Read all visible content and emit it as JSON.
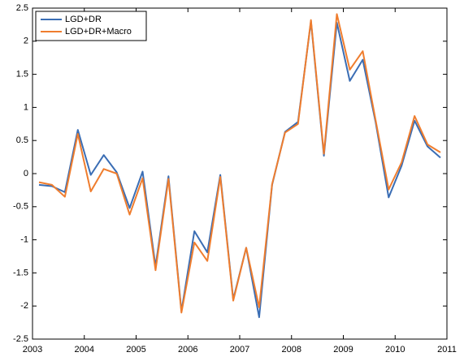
{
  "chart_data": {
    "type": "line",
    "x": [
      2003.125,
      2003.375,
      2003.625,
      2003.875,
      2004.125,
      2004.375,
      2004.625,
      2004.875,
      2005.125,
      2005.375,
      2005.625,
      2005.875,
      2006.125,
      2006.375,
      2006.625,
      2006.875,
      2007.125,
      2007.375,
      2007.625,
      2007.875,
      2008.125,
      2008.375,
      2008.625,
      2008.875,
      2009.125,
      2009.375,
      2009.625,
      2009.875,
      2010.125,
      2010.375,
      2010.625,
      2010.875
    ],
    "series": [
      {
        "name": "LGD+DR",
        "color": "#3a6db4",
        "values": [
          -0.17,
          -0.19,
          -0.28,
          0.66,
          -0.02,
          0.28,
          0.02,
          -0.52,
          0.03,
          -1.4,
          -0.04,
          -2.08,
          -0.87,
          -1.19,
          -0.02,
          -1.9,
          -1.12,
          -2.17,
          -0.17,
          0.63,
          0.78,
          2.3,
          0.27,
          2.28,
          1.4,
          1.72,
          0.77,
          -0.36,
          0.12,
          0.8,
          0.41,
          0.24
        ]
      },
      {
        "name": "LGD+DR+Macro",
        "color": "#ef7d2e",
        "values": [
          -0.13,
          -0.17,
          -0.35,
          0.6,
          -0.27,
          0.07,
          0.0,
          -0.62,
          -0.07,
          -1.46,
          -0.08,
          -2.1,
          -1.04,
          -1.32,
          -0.05,
          -1.92,
          -1.12,
          -2.02,
          -0.16,
          0.62,
          0.75,
          2.32,
          0.3,
          2.41,
          1.57,
          1.85,
          0.8,
          -0.24,
          0.17,
          0.87,
          0.44,
          0.32
        ]
      }
    ],
    "xlim": [
      2003,
      2011
    ],
    "xticks": [
      2003,
      2004,
      2005,
      2006,
      2007,
      2008,
      2009,
      2010,
      2011
    ],
    "ylim": [
      -2.5,
      2.5
    ],
    "yticks": [
      -2.5,
      -2,
      -1.5,
      -1,
      -0.5,
      0,
      0.5,
      1,
      1.5,
      2,
      2.5
    ],
    "grid": false,
    "legend": "upper-left"
  }
}
